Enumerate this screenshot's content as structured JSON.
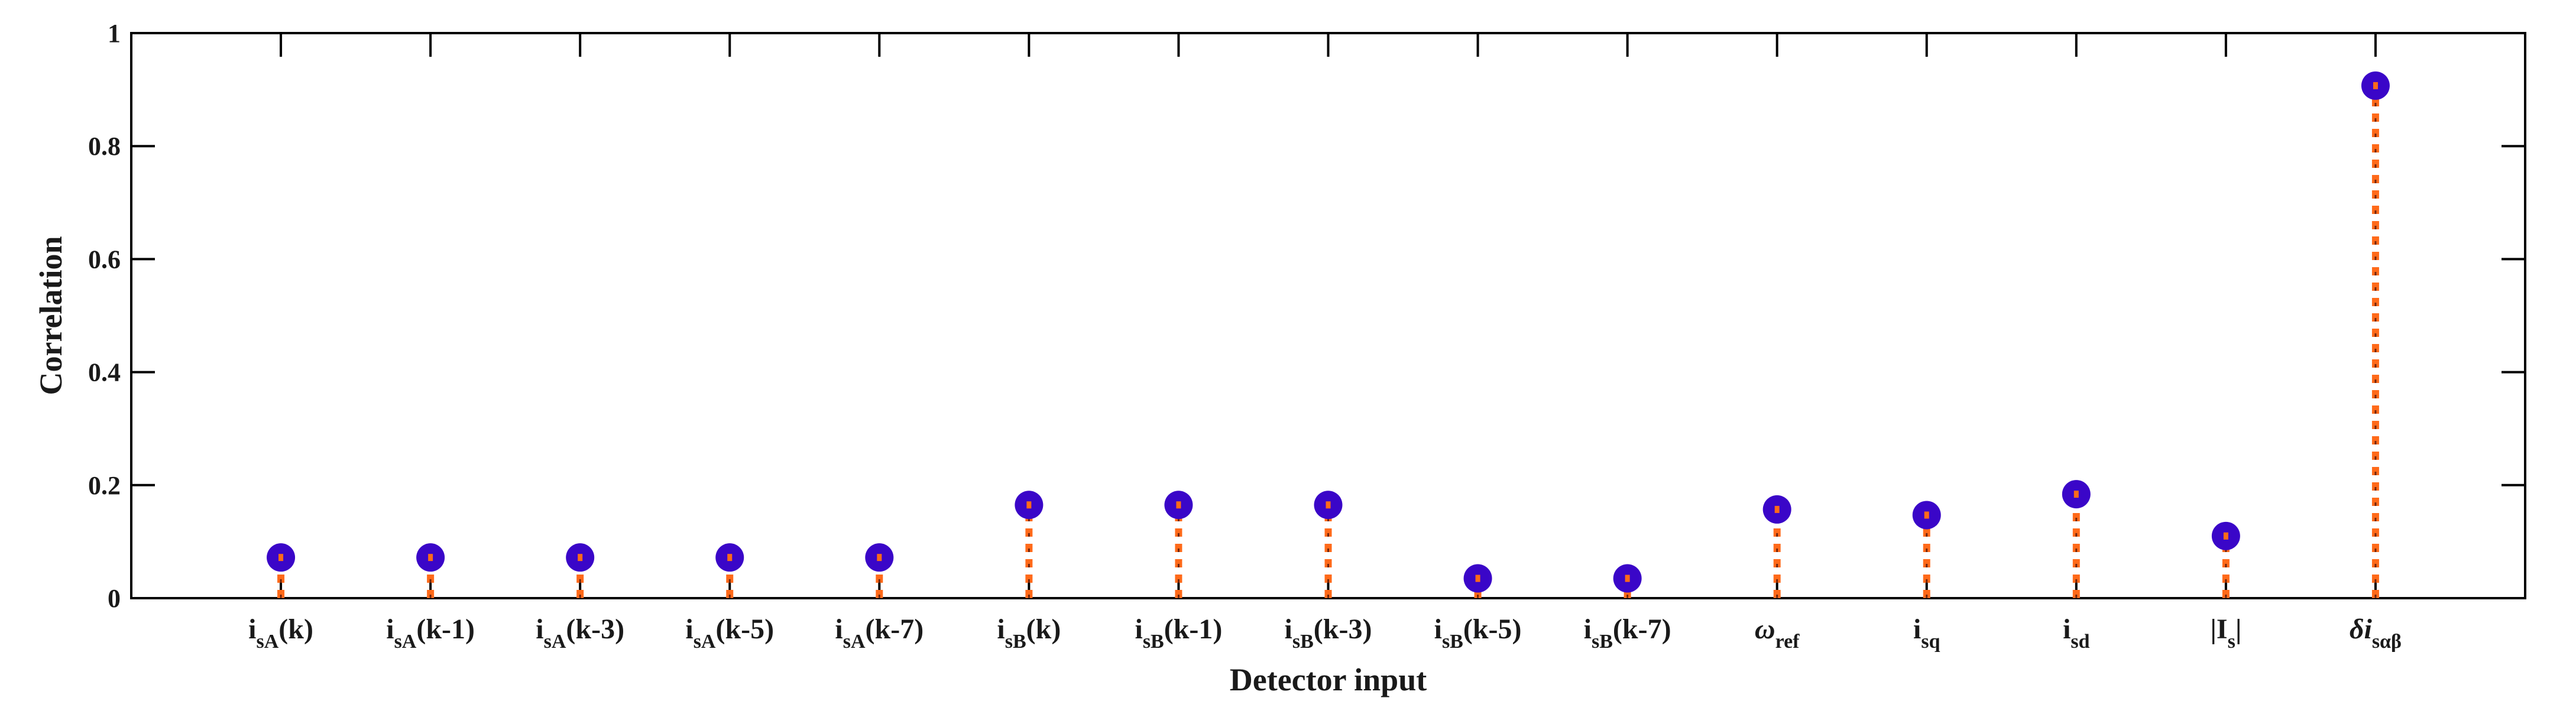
{
  "chart_data": {
    "type": "stem",
    "xlabel": "Detector input",
    "ylabel": "Correlation",
    "ylim": [
      0,
      1
    ],
    "yticks": [
      0,
      0.2,
      0.4,
      0.6,
      0.8,
      1
    ],
    "ytick_labels": [
      "0",
      "0.2",
      "0.4",
      "0.6",
      "0.8",
      "1"
    ],
    "categories": [
      {
        "base": "i",
        "sub": "sA",
        "suffix": "(k)"
      },
      {
        "base": "i",
        "sub": "sA",
        "suffix": "(k-1)"
      },
      {
        "base": "i",
        "sub": "sA",
        "suffix": "(k-3)"
      },
      {
        "base": "i",
        "sub": "sA",
        "suffix": "(k-5)"
      },
      {
        "base": "i",
        "sub": "sA",
        "suffix": "(k-7)"
      },
      {
        "base": "i",
        "sub": "sB",
        "suffix": "(k)"
      },
      {
        "base": "i",
        "sub": "sB",
        "suffix": "(k-1)"
      },
      {
        "base": "i",
        "sub": "sB",
        "suffix": "(k-3)"
      },
      {
        "base": "i",
        "sub": "sB",
        "suffix": "(k-5)"
      },
      {
        "base": "i",
        "sub": "sB",
        "suffix": "(k-7)"
      },
      {
        "base": "ω",
        "sub": "ref",
        "suffix": ""
      },
      {
        "base": "i",
        "sub": "sq",
        "suffix": ""
      },
      {
        "base": "i",
        "sub": "sd",
        "suffix": ""
      },
      {
        "base": "|I",
        "sub": "s",
        "suffix": "|"
      },
      {
        "base": "δi",
        "sub": "sαβ",
        "suffix": ""
      }
    ],
    "values": [
      0.072,
      0.072,
      0.072,
      0.072,
      0.072,
      0.165,
      0.165,
      0.165,
      0.035,
      0.035,
      0.157,
      0.147,
      0.184,
      0.11,
      0.907
    ],
    "grid": false,
    "colors": {
      "marker": "#3a06c8",
      "stem": "#ff6a1a",
      "stem_core": "#5a1a0a",
      "axis": "#000000"
    }
  }
}
